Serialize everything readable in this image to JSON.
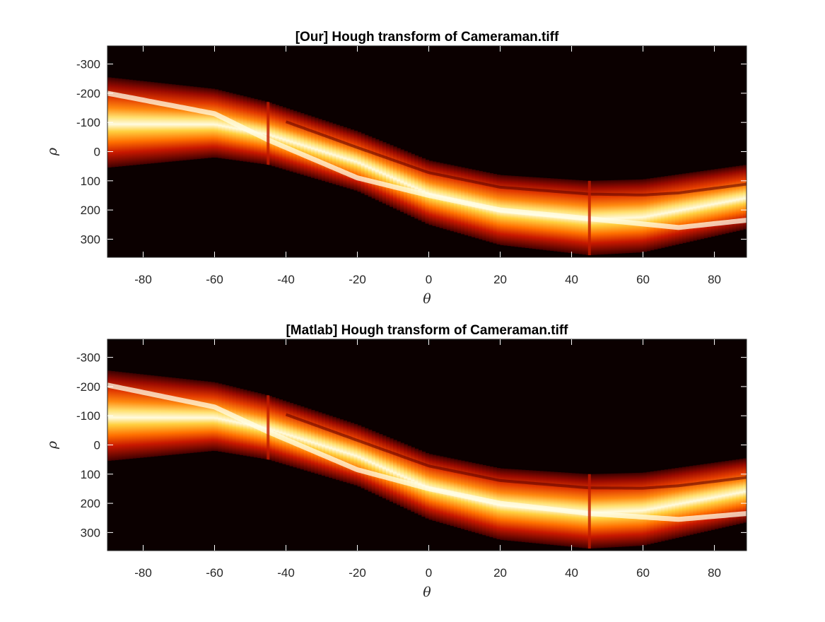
{
  "chart_data": [
    {
      "type": "heatmap",
      "title": "[Our] Hough transform of Cameraman.tiff",
      "xlabel": "θ",
      "ylabel": "ρ",
      "xlim": [
        -90,
        89
      ],
      "ylim": [
        -362,
        362
      ],
      "y_reversed": true,
      "xticks": [
        -80,
        -60,
        -40,
        -20,
        0,
        20,
        40,
        60,
        80
      ],
      "yticks": [
        -300,
        -200,
        -100,
        0,
        100,
        200,
        300
      ],
      "colormap": "hot",
      "background": "#0b0000",
      "band": {
        "upper_rho_at_theta": [
          [
            -90,
            -255
          ],
          [
            -60,
            -215
          ],
          [
            -45,
            -170
          ],
          [
            -20,
            -70
          ],
          [
            0,
            30
          ],
          [
            20,
            80
          ],
          [
            45,
            100
          ],
          [
            60,
            95
          ],
          [
            89,
            45
          ]
        ],
        "lower_rho_at_theta": [
          [
            -90,
            55
          ],
          [
            -60,
            20
          ],
          [
            -45,
            45
          ],
          [
            -20,
            135
          ],
          [
            0,
            250
          ],
          [
            20,
            320
          ],
          [
            45,
            355
          ],
          [
            60,
            345
          ],
          [
            89,
            265
          ]
        ],
        "bright_ridge_rho_at_theta": [
          [
            -90,
            -200
          ],
          [
            -60,
            -130
          ],
          [
            -45,
            -40
          ],
          [
            -20,
            90
          ],
          [
            0,
            150
          ],
          [
            20,
            200
          ],
          [
            45,
            230
          ],
          [
            70,
            260
          ],
          [
            89,
            235
          ]
        ]
      },
      "stripe_thetas": [
        -45,
        45
      ]
    },
    {
      "type": "heatmap",
      "title": "[Matlab] Hough transform of Cameraman.tiff",
      "xlabel": "θ",
      "ylabel": "ρ",
      "xlim": [
        -90,
        89
      ],
      "ylim": [
        -362,
        362
      ],
      "y_reversed": true,
      "xticks": [
        -80,
        -60,
        -40,
        -20,
        0,
        20,
        40,
        60,
        80
      ],
      "yticks": [
        -300,
        -200,
        -100,
        0,
        100,
        200,
        300
      ],
      "colormap": "hot",
      "background": "#0b0000",
      "band": {
        "upper_rho_at_theta": [
          [
            -90,
            -255
          ],
          [
            -60,
            -215
          ],
          [
            -45,
            -170
          ],
          [
            -20,
            -70
          ],
          [
            0,
            30
          ],
          [
            20,
            80
          ],
          [
            45,
            100
          ],
          [
            60,
            95
          ],
          [
            89,
            45
          ]
        ],
        "lower_rho_at_theta": [
          [
            -90,
            55
          ],
          [
            -60,
            20
          ],
          [
            -45,
            50
          ],
          [
            -20,
            140
          ],
          [
            0,
            255
          ],
          [
            20,
            325
          ],
          [
            45,
            355
          ],
          [
            60,
            345
          ],
          [
            89,
            265
          ]
        ],
        "bright_ridge_rho_at_theta": [
          [
            -90,
            -205
          ],
          [
            -60,
            -130
          ],
          [
            -45,
            -45
          ],
          [
            -20,
            85
          ],
          [
            0,
            150
          ],
          [
            20,
            200
          ],
          [
            45,
            235
          ],
          [
            70,
            255
          ],
          [
            89,
            235
          ]
        ]
      },
      "stripe_thetas": [
        -45,
        45
      ]
    }
  ]
}
